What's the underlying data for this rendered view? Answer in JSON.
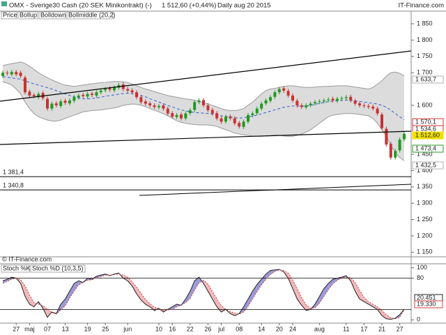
{
  "header": {
    "title": "OMX - Sverige30 Cash (20 SEK Minikontrakt) (-)",
    "quote": "1 512,60 (+0,44%)",
    "period": "Daily aug 20 2015",
    "brand": "IT-Finance.com"
  },
  "chart_data": [
    {
      "type": "candlestick",
      "legend": [
        "Price",
        "Bollup",
        "Bolldown",
        "Bollmiddle (20,2)"
      ],
      "watermark": "© IT-Finance.com",
      "up_color": "#1f9a1f",
      "down_color": "#c83232",
      "open": [
        1690,
        1700,
        1695,
        1702,
        1700,
        1685,
        1642,
        1632,
        1625,
        1638,
        1620,
        1590,
        1606,
        1598,
        1614,
        1606,
        1614,
        1624,
        1632,
        1627,
        1636,
        1630,
        1640,
        1646,
        1652,
        1646,
        1654,
        1664,
        1650,
        1646,
        1640,
        1625,
        1612,
        1606,
        1600,
        1594,
        1600,
        1590,
        1576,
        1564,
        1572,
        1560,
        1576,
        1586,
        1610,
        1616,
        1600,
        1586,
        1576,
        1560,
        1550,
        1566,
        1560,
        1546,
        1534,
        1550,
        1570,
        1576,
        1590,
        1606,
        1614,
        1626,
        1640,
        1652,
        1644,
        1630,
        1614,
        1600,
        1594,
        1600,
        1606,
        1610,
        1612,
        1616,
        1620,
        1614,
        1620,
        1622,
        1626,
        1614,
        1606,
        1600,
        1598,
        1596,
        1590,
        1572,
        1528,
        1482,
        1440,
        1462,
        1496
      ],
      "close": [
        1700,
        1698,
        1702,
        1695,
        1690,
        1640,
        1630,
        1628,
        1635,
        1622,
        1590,
        1605,
        1600,
        1612,
        1608,
        1615,
        1625,
        1630,
        1628,
        1635,
        1632,
        1640,
        1645,
        1650,
        1648,
        1655,
        1662,
        1650,
        1645,
        1640,
        1625,
        1610,
        1605,
        1600,
        1595,
        1598,
        1590,
        1575,
        1565,
        1570,
        1560,
        1575,
        1585,
        1610,
        1615,
        1600,
        1585,
        1575,
        1560,
        1550,
        1565,
        1560,
        1545,
        1535,
        1550,
        1570,
        1575,
        1590,
        1605,
        1615,
        1625,
        1640,
        1650,
        1645,
        1630,
        1615,
        1600,
        1595,
        1600,
        1605,
        1610,
        1612,
        1615,
        1618,
        1615,
        1620,
        1622,
        1625,
        1615,
        1605,
        1600,
        1598,
        1595,
        1590,
        1575,
        1530,
        1480,
        1440,
        1460,
        1495,
        1512.6
      ],
      "series": [
        {
          "name": "Bollup",
          "color": "#9a9a9a",
          "values": [
            1722,
            1725,
            1728,
            1730,
            1733,
            1728,
            1720,
            1710,
            1700,
            1692,
            1685,
            1678,
            1672,
            1666,
            1662,
            1660,
            1658,
            1660,
            1662,
            1664,
            1666,
            1668,
            1669,
            1670,
            1672,
            1673,
            1673,
            1672,
            1670,
            1666,
            1660,
            1655,
            1650,
            1646,
            1642,
            1638,
            1634,
            1630,
            1627,
            1625,
            1622,
            1620,
            1618,
            1616,
            1612,
            1608,
            1605,
            1600,
            1595,
            1590,
            1586,
            1584,
            1584,
            1586,
            1590,
            1600,
            1610,
            1622,
            1635,
            1645,
            1650,
            1652,
            1655,
            1658,
            1660,
            1660,
            1658,
            1656,
            1655,
            1655,
            1656,
            1657,
            1658,
            1658,
            1659,
            1660,
            1660,
            1660,
            1658,
            1656,
            1654,
            1652,
            1650,
            1655,
            1665,
            1675,
            1690,
            1700,
            1702,
            1698,
            1690
          ]
        },
        {
          "name": "Bolldown",
          "color": "#9a9a9a",
          "values": [
            1672,
            1668,
            1662,
            1650,
            1635,
            1610,
            1590,
            1575,
            1565,
            1560,
            1555,
            1552,
            1552,
            1555,
            1560,
            1565,
            1570,
            1575,
            1580,
            1582,
            1584,
            1585,
            1586,
            1588,
            1590,
            1592,
            1595,
            1600,
            1602,
            1604,
            1603,
            1600,
            1596,
            1590,
            1585,
            1580,
            1574,
            1568,
            1560,
            1553,
            1548,
            1545,
            1543,
            1541,
            1540,
            1540,
            1540,
            1538,
            1535,
            1530,
            1525,
            1520,
            1515,
            1512,
            1510,
            1508,
            1506,
            1505,
            1505,
            1506,
            1507,
            1508,
            1508,
            1506,
            1505,
            1505,
            1508,
            1512,
            1518,
            1525,
            1535,
            1545,
            1555,
            1565,
            1570,
            1572,
            1574,
            1575,
            1575,
            1574,
            1572,
            1570,
            1568,
            1560,
            1545,
            1525,
            1505,
            1478,
            1455,
            1440,
            1430
          ]
        },
        {
          "name": "Bollmiddle (20,2)",
          "color": "#2f5fd0",
          "values": [
            1688,
            1686,
            1684,
            1682,
            1680,
            1675,
            1670,
            1666,
            1662,
            1658,
            1654,
            1650,
            1645,
            1640,
            1635,
            1630,
            1626,
            1622,
            1620,
            1620,
            1621,
            1623,
            1625,
            1628,
            1630,
            1632,
            1634,
            1636,
            1637,
            1636,
            1634,
            1630,
            1626,
            1620,
            1615,
            1610,
            1605,
            1600,
            1595,
            1590,
            1586,
            1583,
            1580,
            1578,
            1577,
            1576,
            1575,
            1573,
            1570,
            1568,
            1566,
            1564,
            1562,
            1561,
            1562,
            1564,
            1567,
            1570,
            1574,
            1578,
            1582,
            1586,
            1590,
            1594,
            1596,
            1598,
            1598,
            1597,
            1598,
            1600,
            1603,
            1606,
            1609,
            1611,
            1613,
            1614,
            1615,
            1616,
            1615,
            1614,
            1612,
            1610,
            1608,
            1606,
            1604,
            1600,
            1594,
            1585,
            1575,
            1565,
            1556
          ]
        }
      ],
      "ylim": [
        1140,
        1880
      ],
      "yticks": [
        {
          "value": 1150,
          "label": "1 150"
        },
        {
          "value": 1200,
          "label": "1 200"
        },
        {
          "value": 1250,
          "label": "1 250"
        },
        {
          "value": 1300,
          "label": "1 300"
        },
        {
          "value": 1350,
          "label": "1 350"
        },
        {
          "value": 1400,
          "label": "1 400"
        },
        {
          "value": 1450,
          "label": "1 450"
        },
        {
          "value": 1600,
          "label": "1 600"
        },
        {
          "value": 1700,
          "label": "1 700"
        },
        {
          "value": 1750,
          "label": "1 750"
        },
        {
          "value": 1800,
          "label": "1 800"
        },
        {
          "value": 1850,
          "label": "1 850"
        }
      ],
      "levels": [
        {
          "value": 1381.4,
          "label": "1 381,4"
        },
        {
          "value": 1340.8,
          "label": "1 340,8"
        }
      ],
      "flags": [
        {
          "label": "1 633,7",
          "color": "#b0b0b0"
        },
        {
          "label": "1 570,1",
          "color": "#d83030"
        },
        {
          "label": "1 534,6",
          "color": "#d83030"
        },
        {
          "label": "1 512,60",
          "color": "#f0e000"
        },
        {
          "label": "1 473,4",
          "color": "#2a9a2a"
        },
        {
          "label": "1 432,5",
          "color": "#b0b0b0"
        }
      ]
    },
    {
      "type": "line",
      "categories": [
        null,
        null,
        null,
        "27",
        null,
        null,
        "maj",
        null,
        null,
        null,
        "07",
        null,
        null,
        null,
        "13",
        null,
        null,
        null,
        null,
        "19",
        null,
        null,
        null,
        "25",
        null,
        null,
        null,
        null,
        "jun",
        null,
        null,
        null,
        null,
        null,
        null,
        "10",
        null,
        null,
        "16",
        null,
        null,
        null,
        "22",
        null,
        null,
        null,
        "26",
        null,
        null,
        "jul",
        null,
        null,
        null,
        "08",
        null,
        null,
        null,
        null,
        "14",
        null,
        null,
        null,
        "20",
        null,
        null,
        "24",
        null,
        null,
        null,
        null,
        null,
        "aug",
        null,
        null,
        null,
        null,
        null,
        "11",
        null,
        null,
        null,
        "17",
        null,
        null,
        null,
        "21",
        null,
        null,
        null,
        "27",
        null
      ],
      "series": [
        {
          "name": "Stoch %K",
          "color": "#222222",
          "values": [
            75,
            78,
            82,
            80,
            70,
            45,
            30,
            25,
            35,
            22,
            5,
            15,
            12,
            30,
            40,
            55,
            70,
            75,
            72,
            80,
            78,
            84,
            86,
            88,
            85,
            88,
            90,
            80,
            75,
            65,
            50,
            38,
            30,
            25,
            18,
            22,
            15,
            20,
            25,
            30,
            28,
            40,
            55,
            75,
            82,
            70,
            55,
            40,
            25,
            15,
            20,
            12,
            8,
            12,
            25,
            40,
            55,
            68,
            78,
            88,
            95,
            96,
            97,
            92,
            80,
            60,
            40,
            28,
            18,
            20,
            30,
            45,
            60,
            70,
            78,
            80,
            82,
            85,
            75,
            55,
            40,
            35,
            30,
            25,
            20,
            8,
            2,
            1,
            3,
            10,
            20.451
          ],
          "value_label": "20.451"
        },
        {
          "name": "Stoch %D (10,3,5)",
          "color": "#d04040",
          "values": [
            70,
            74,
            78,
            80,
            77,
            65,
            48,
            33,
            30,
            27,
            21,
            14,
            11,
            19,
            27,
            42,
            55,
            67,
            72,
            76,
            77,
            81,
            83,
            86,
            86,
            87,
            88,
            86,
            82,
            73,
            63,
            51,
            39,
            31,
            24,
            22,
            18,
            19,
            20,
            25,
            28,
            33,
            41,
            57,
            71,
            76,
            69,
            55,
            40,
            27,
            20,
            16,
            13,
            11,
            15,
            26,
            40,
            54,
            67,
            78,
            87,
            93,
            96,
            95,
            90,
            77,
            60,
            43,
            29,
            22,
            23,
            32,
            45,
            58,
            69,
            76,
            80,
            82,
            81,
            72,
            57,
            43,
            35,
            30,
            25,
            18,
            10,
            4,
            2,
            5,
            19.33
          ],
          "value_label": "19.330"
        }
      ],
      "up_fill": "#9a9ad8",
      "down_fill": "#f0b8bc",
      "levels": [
        20,
        80
      ],
      "ylim": [
        -5,
        105
      ],
      "yticks": [
        0,
        80,
        100
      ]
    }
  ]
}
